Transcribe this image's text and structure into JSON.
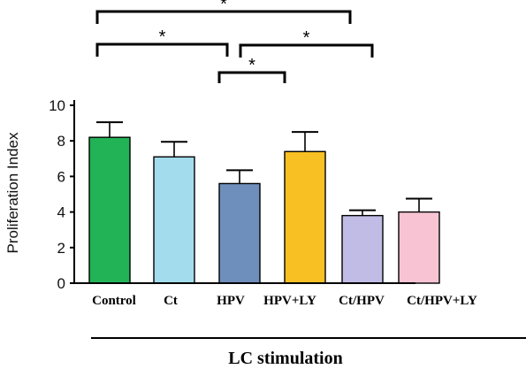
{
  "chart_data": {
    "type": "bar",
    "categories": [
      "Control",
      "Ct",
      "HPV",
      "HPV+LY",
      "Ct/HPV",
      "Ct/HPV+LY"
    ],
    "values": [
      8.2,
      7.1,
      5.6,
      7.4,
      3.8,
      4.0
    ],
    "errors": [
      0.85,
      0.85,
      0.75,
      1.1,
      0.3,
      0.75
    ],
    "colors": [
      "#22b356",
      "#a3dcec",
      "#6e8fbc",
      "#f8c022",
      "#c0bce6",
      "#f8c4d4"
    ],
    "ylabel": "Proliferation Index",
    "xlabel": "LC stimulation",
    "ylim": [
      0,
      10
    ],
    "yticks": [
      0,
      2,
      4,
      6,
      8,
      10
    ],
    "significance": [
      {
        "from": 0,
        "to": 4,
        "label": "*"
      },
      {
        "from": 0,
        "to": 2,
        "label": "*"
      },
      {
        "from": 2,
        "to": 4,
        "label": "*"
      },
      {
        "from": 2,
        "to": 3,
        "label": "*"
      }
    ]
  }
}
